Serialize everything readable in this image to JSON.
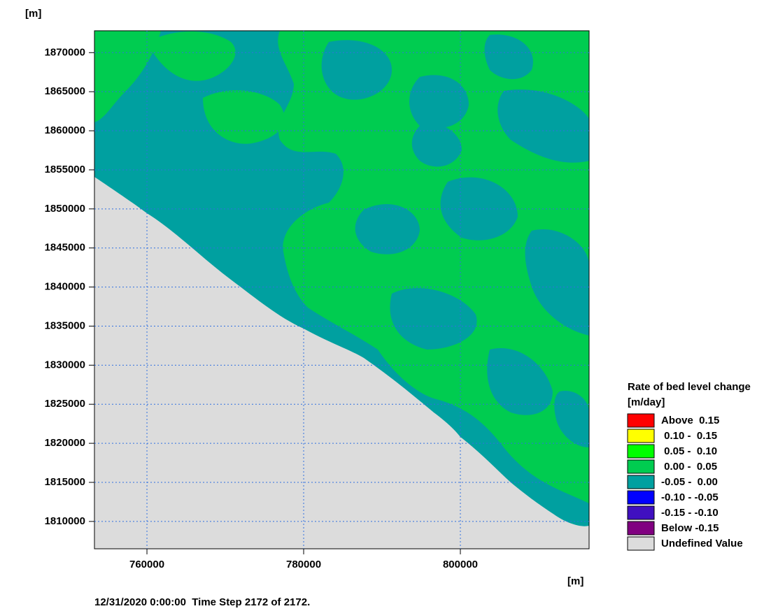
{
  "chart_data": {
    "type": "contour",
    "y_unit": "[m]",
    "x_unit": "[m]",
    "footer": "12/31/2020 0:00:00  Time Step 2172 of 2172.",
    "xlim": [
      753300,
      816430
    ],
    "ylim": [
      1806500,
      1872800
    ],
    "xticks": [
      760000,
      780000,
      800000
    ],
    "yticks": [
      1810000,
      1815000,
      1820000,
      1825000,
      1830000,
      1835000,
      1840000,
      1845000,
      1850000,
      1855000,
      1860000,
      1865000,
      1870000
    ],
    "grid": true,
    "legend": {
      "title": "Rate of bed level change",
      "unit": "[m/day]",
      "items": [
        {
          "name": "Above  0.15",
          "color": "#ff0000"
        },
        {
          "name": " 0.10 -  0.15",
          "color": "#ffff00"
        },
        {
          "name": " 0.05 -  0.10",
          "color": "#00ff00"
        },
        {
          "name": " 0.00 -  0.05",
          "color": "#00cc50"
        },
        {
          "name": "-0.05 -  0.00",
          "color": "#00a0a0"
        },
        {
          "name": "-0.10 - -0.05",
          "color": "#0000ff"
        },
        {
          "name": "-0.15 - -0.10",
          "color": "#4010c0"
        },
        {
          "name": "Below -0.15",
          "color": "#800080"
        },
        {
          "name": "Undefined Value",
          "color": "#dcdcdc"
        }
      ]
    }
  }
}
